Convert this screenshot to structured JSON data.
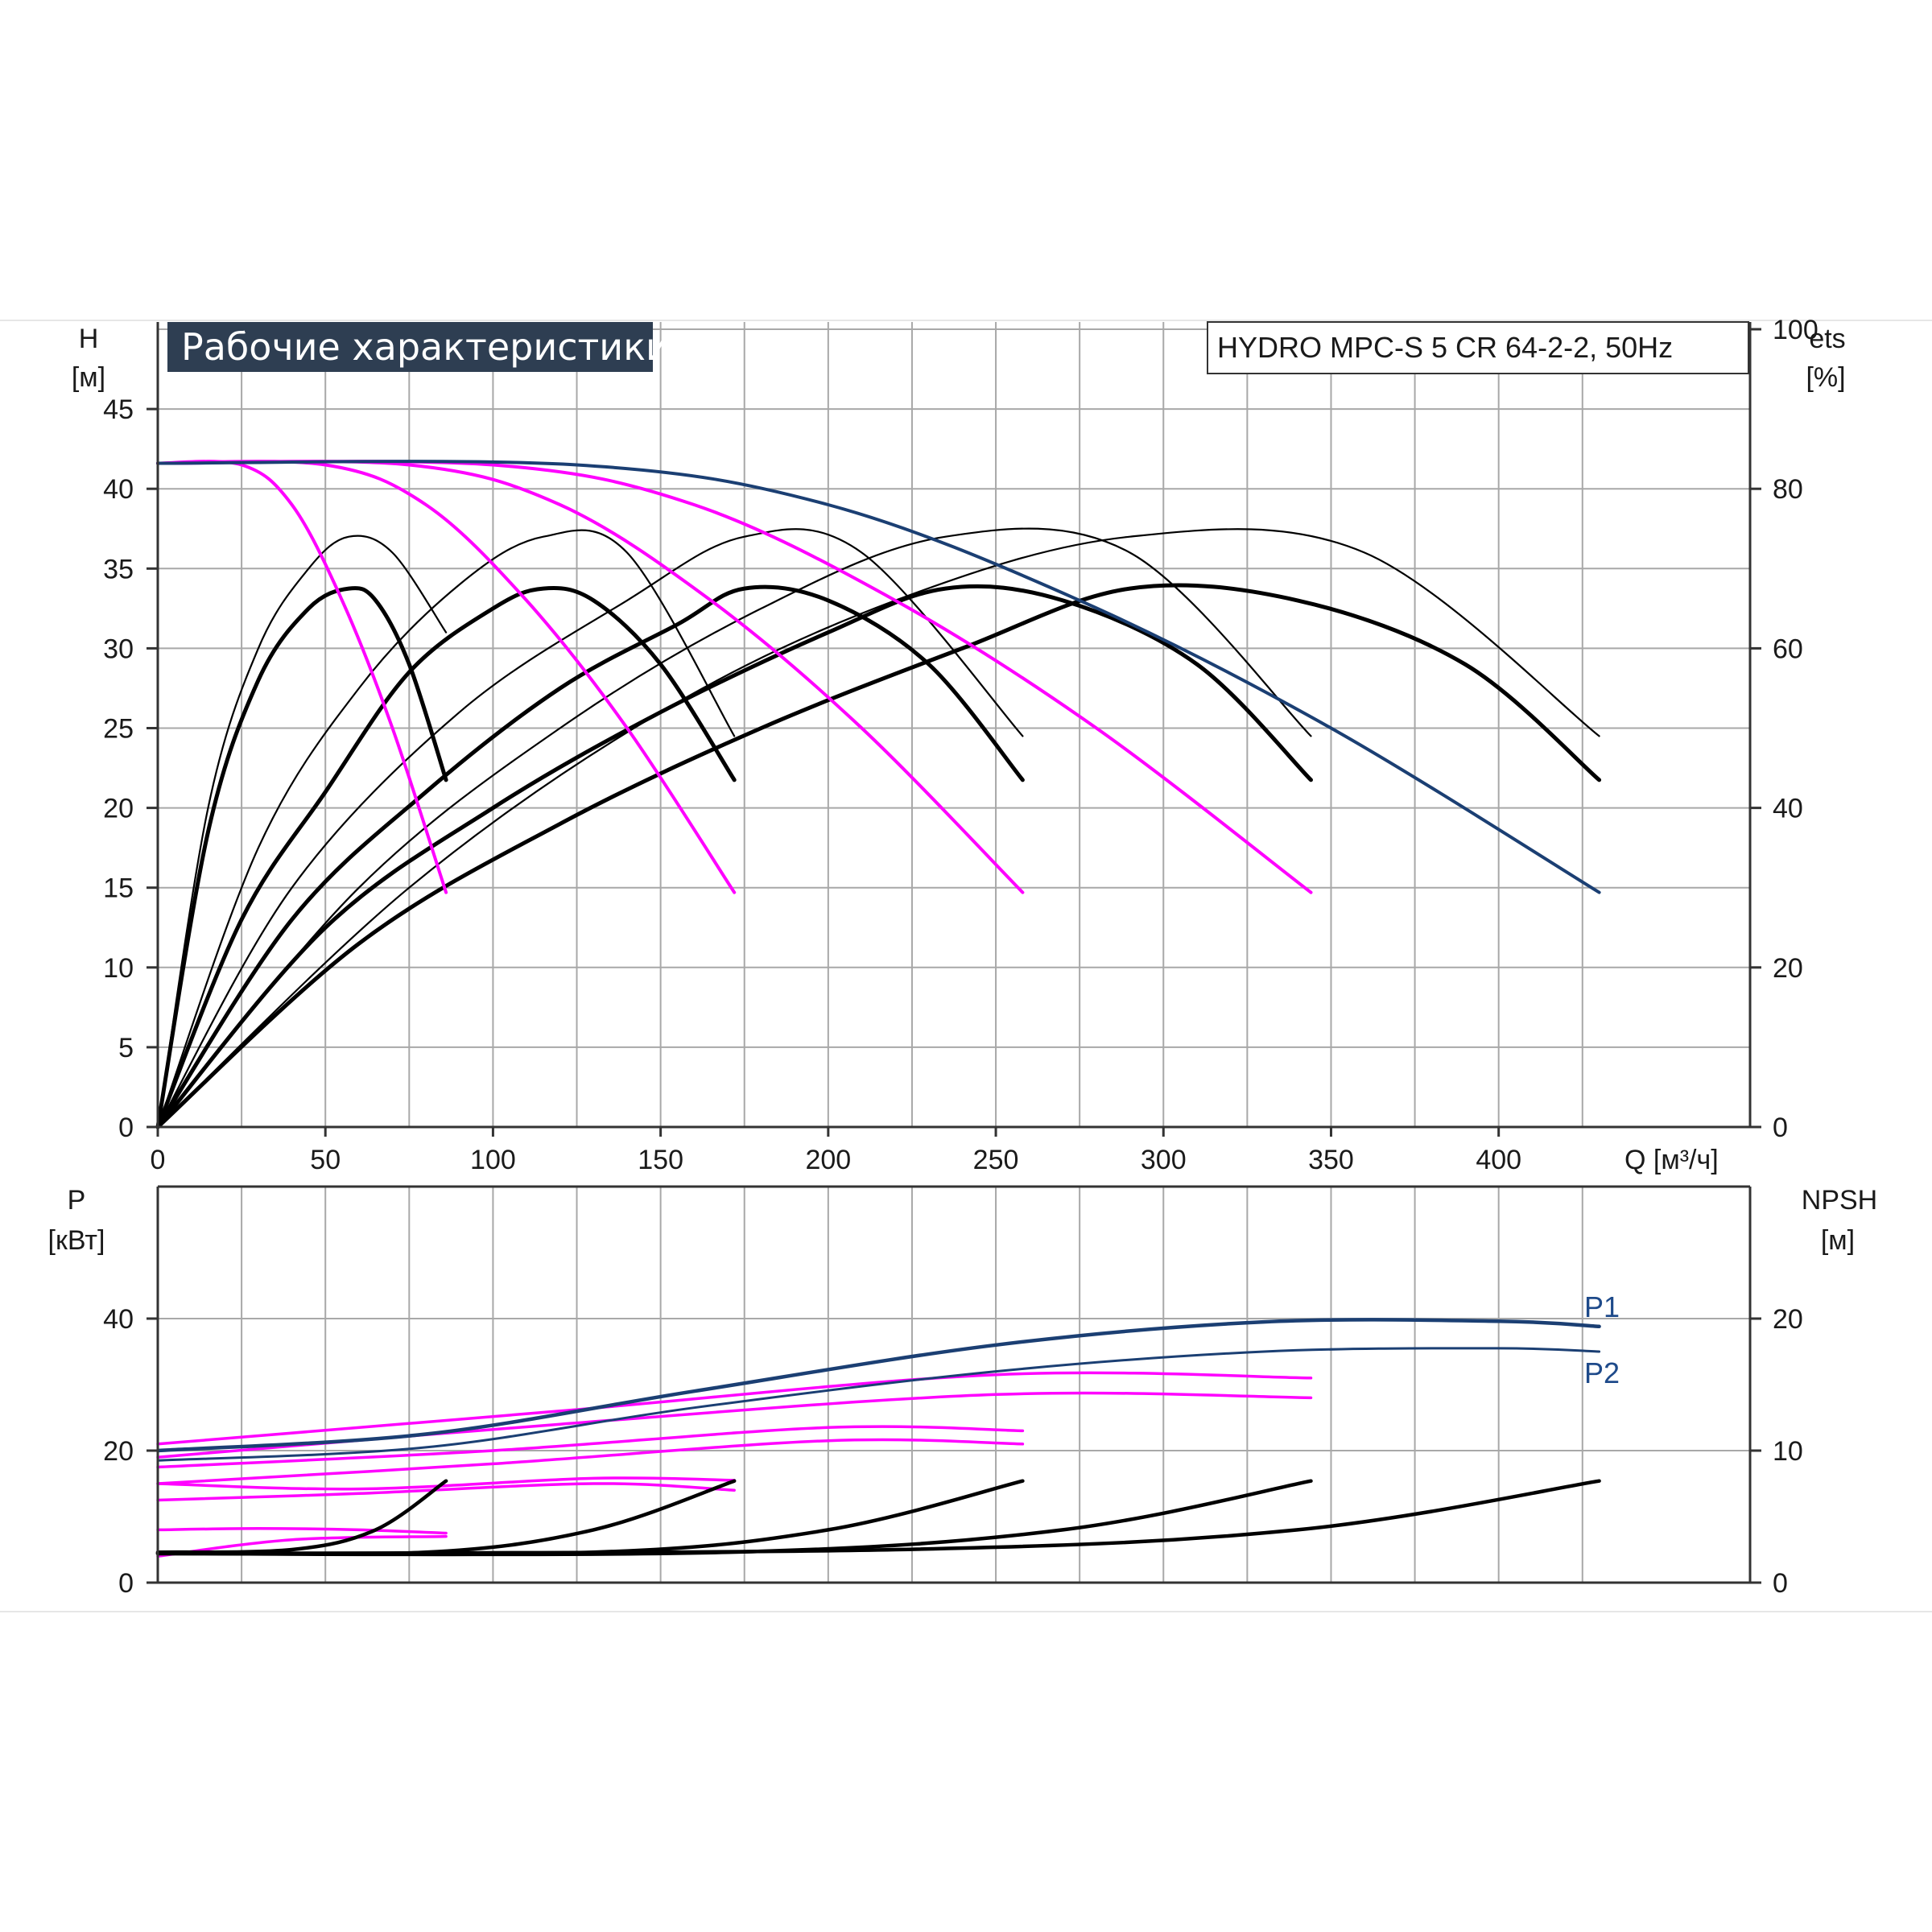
{
  "title": "Рабочие характеристики",
  "model": "HYDRO MPC-S 5 CR 64-2-2, 50Hz",
  "colors": {
    "total": "#1b3f73",
    "stage": "#ff00ff",
    "eff": "#000000",
    "grid": "#a8a8a8",
    "titlebg": "#2e3e52"
  },
  "chart_data": [
    {
      "type": "line",
      "title": "Рабочие характеристики",
      "xlabel": "Q [м³/ч]",
      "ylabel": "H [м]",
      "y2label": "ets [%]",
      "xlim": [
        0,
        475
      ],
      "ylim": [
        0,
        50
      ],
      "y2lim": [
        0,
        100
      ],
      "xticks": [
        0,
        50,
        100,
        150,
        200,
        250,
        300,
        350,
        400
      ],
      "yticks": [
        0,
        5,
        10,
        15,
        20,
        25,
        30,
        35,
        40,
        45
      ],
      "y2ticks": [
        0,
        20,
        40,
        60,
        80,
        100
      ],
      "grid": true,
      "head_curves": [
        {
          "pumps": 1,
          "points": [
            [
              0,
              41.6
            ],
            [
              25,
              41.5
            ],
            [
              40,
              39
            ],
            [
              55,
              33
            ],
            [
              70,
              25
            ],
            [
              86,
              14.7
            ]
          ]
        },
        {
          "pumps": 2,
          "points": [
            [
              0,
              41.6
            ],
            [
              50,
              41.5
            ],
            [
              80,
              39
            ],
            [
              110,
              33
            ],
            [
              140,
              25
            ],
            [
              172,
              14.7
            ]
          ]
        },
        {
          "pumps": 3,
          "points": [
            [
              0,
              41.6
            ],
            [
              75,
              41.5
            ],
            [
              120,
              39
            ],
            [
              165,
              33
            ],
            [
              210,
              25
            ],
            [
              258,
              14.7
            ]
          ]
        },
        {
          "pumps": 4,
          "points": [
            [
              0,
              41.6
            ],
            [
              100,
              41.5
            ],
            [
              160,
              39
            ],
            [
              220,
              33
            ],
            [
              280,
              25
            ],
            [
              344,
              14.7
            ]
          ]
        },
        {
          "pumps": 5,
          "points": [
            [
              0,
              41.6
            ],
            [
              125,
              41.5
            ],
            [
              200,
              39
            ],
            [
              275,
              33
            ],
            [
              350,
              25
            ],
            [
              430,
              14.7
            ]
          ]
        }
      ],
      "efficiency_curves": [
        {
          "pumps": 1,
          "thick": true,
          "points": [
            [
              0,
              0
            ],
            [
              15,
              37
            ],
            [
              30,
              56
            ],
            [
              45,
              65
            ],
            [
              57,
              67.5
            ],
            [
              65,
              66
            ],
            [
              75,
              58
            ],
            [
              86,
              43.5
            ]
          ]
        },
        {
          "pumps": 1,
          "thick": false,
          "points": [
            [
              0,
              0
            ],
            [
              15,
              40
            ],
            [
              30,
              60
            ],
            [
              45,
              70
            ],
            [
              57,
              74
            ],
            [
              70,
              72
            ],
            [
              86,
              62
            ]
          ]
        },
        {
          "pumps": 2,
          "thick": true,
          "points": [
            [
              0,
              0
            ],
            [
              25,
              26
            ],
            [
              50,
              42
            ],
            [
              75,
              57
            ],
            [
              100,
              65
            ],
            [
              115,
              67.5
            ],
            [
              130,
              66
            ],
            [
              150,
              58
            ],
            [
              172,
              43.5
            ]
          ]
        },
        {
          "pumps": 2,
          "thick": false,
          "points": [
            [
              0,
              0
            ],
            [
              30,
              35
            ],
            [
              60,
              55
            ],
            [
              90,
              68
            ],
            [
              115,
              74
            ],
            [
              140,
              72
            ],
            [
              172,
              49
            ]
          ]
        },
        {
          "pumps": 3,
          "thick": true,
          "points": [
            [
              0,
              0
            ],
            [
              40,
              26
            ],
            [
              80,
              42
            ],
            [
              120,
              55
            ],
            [
              155,
              63
            ],
            [
              175,
              67.5
            ],
            [
              200,
              66
            ],
            [
              230,
              58
            ],
            [
              258,
              43.5
            ]
          ]
        },
        {
          "pumps": 3,
          "thick": false,
          "points": [
            [
              0,
              0
            ],
            [
              40,
              30
            ],
            [
              90,
              52
            ],
            [
              140,
              66
            ],
            [
              175,
              74
            ],
            [
              210,
              72
            ],
            [
              258,
              49
            ]
          ]
        },
        {
          "pumps": 4,
          "thick": true,
          "points": [
            [
              0,
              0
            ],
            [
              50,
              25
            ],
            [
              100,
              40
            ],
            [
              150,
              52
            ],
            [
              200,
              62
            ],
            [
              235,
              67.5
            ],
            [
              270,
              66
            ],
            [
              310,
              58
            ],
            [
              344,
              43.5
            ]
          ]
        },
        {
          "pumps": 4,
          "thick": false,
          "points": [
            [
              0,
              0
            ],
            [
              60,
              30
            ],
            [
              120,
              50
            ],
            [
              180,
              65
            ],
            [
              235,
              74
            ],
            [
              290,
              72
            ],
            [
              344,
              49
            ]
          ]
        },
        {
          "pumps": 5,
          "thick": true,
          "points": [
            [
              0,
              0
            ],
            [
              60,
              23
            ],
            [
              120,
              38
            ],
            [
              180,
              50
            ],
            [
              240,
              60
            ],
            [
              290,
              67.5
            ],
            [
              340,
              66
            ],
            [
              390,
              58
            ],
            [
              430,
              43.5
            ]
          ]
        },
        {
          "pumps": 5,
          "thick": false,
          "points": [
            [
              0,
              0
            ],
            [
              75,
              30
            ],
            [
              150,
              52
            ],
            [
              220,
              66
            ],
            [
              290,
              74
            ],
            [
              360,
              72
            ],
            [
              430,
              49
            ]
          ]
        }
      ]
    },
    {
      "type": "line",
      "xlim": [
        0,
        475
      ],
      "ylabel": "P [кВт]",
      "y2label": "NPSH [м]",
      "ylim": [
        0,
        60
      ],
      "y2lim": [
        0,
        30
      ],
      "yticks": [
        0,
        20,
        40
      ],
      "y2ticks": [
        0,
        10,
        20
      ],
      "grid": true,
      "power_total": [
        {
          "name": "P1",
          "points": [
            [
              0,
              20
            ],
            [
              80,
              22.5
            ],
            [
              160,
              29
            ],
            [
              250,
              36
            ],
            [
              330,
              39.5
            ],
            [
              400,
              39.6
            ],
            [
              430,
              38.8
            ]
          ]
        },
        {
          "name": "P2",
          "points": [
            [
              0,
              18.5
            ],
            [
              80,
              20.5
            ],
            [
              160,
              26.5
            ],
            [
              250,
              32
            ],
            [
              330,
              35
            ],
            [
              400,
              35.5
            ],
            [
              430,
              35
            ]
          ]
        }
      ],
      "power_stages": [
        [
          [
            0,
            8
          ],
          [
            30,
            8.2
          ],
          [
            60,
            8
          ],
          [
            86,
            7.5
          ]
        ],
        [
          [
            0,
            4
          ],
          [
            40,
            6.5
          ],
          [
            86,
            7
          ]
        ],
        [
          [
            0,
            15
          ],
          [
            60,
            14.2
          ],
          [
            130,
            15.8
          ],
          [
            172,
            15.5
          ]
        ],
        [
          [
            0,
            12.5
          ],
          [
            60,
            13.5
          ],
          [
            130,
            15
          ],
          [
            172,
            14
          ]
        ],
        [
          [
            0,
            17.5
          ],
          [
            100,
            20
          ],
          [
            200,
            23.5
          ],
          [
            258,
            23
          ]
        ],
        [
          [
            0,
            15
          ],
          [
            100,
            18
          ],
          [
            200,
            21.5
          ],
          [
            258,
            21
          ]
        ],
        [
          [
            0,
            21
          ],
          [
            120,
            26
          ],
          [
            250,
            31.5
          ],
          [
            344,
            31
          ]
        ],
        [
          [
            0,
            19
          ],
          [
            120,
            24
          ],
          [
            250,
            28.5
          ],
          [
            344,
            28
          ]
        ]
      ],
      "npsh_curves": [
        [
          [
            0,
            2.3
          ],
          [
            40,
            2.5
          ],
          [
            65,
            4
          ],
          [
            86,
            7.7
          ]
        ],
        [
          [
            0,
            2.3
          ],
          [
            80,
            2.3
          ],
          [
            130,
            4
          ],
          [
            172,
            7.7
          ]
        ],
        [
          [
            0,
            2.2
          ],
          [
            130,
            2.3
          ],
          [
            200,
            4
          ],
          [
            258,
            7.7
          ]
        ],
        [
          [
            0,
            2.2
          ],
          [
            170,
            2.3
          ],
          [
            270,
            4
          ],
          [
            344,
            7.7
          ]
        ],
        [
          [
            0,
            2.2
          ],
          [
            220,
            2.5
          ],
          [
            340,
            4
          ],
          [
            430,
            7.7
          ]
        ]
      ]
    }
  ]
}
